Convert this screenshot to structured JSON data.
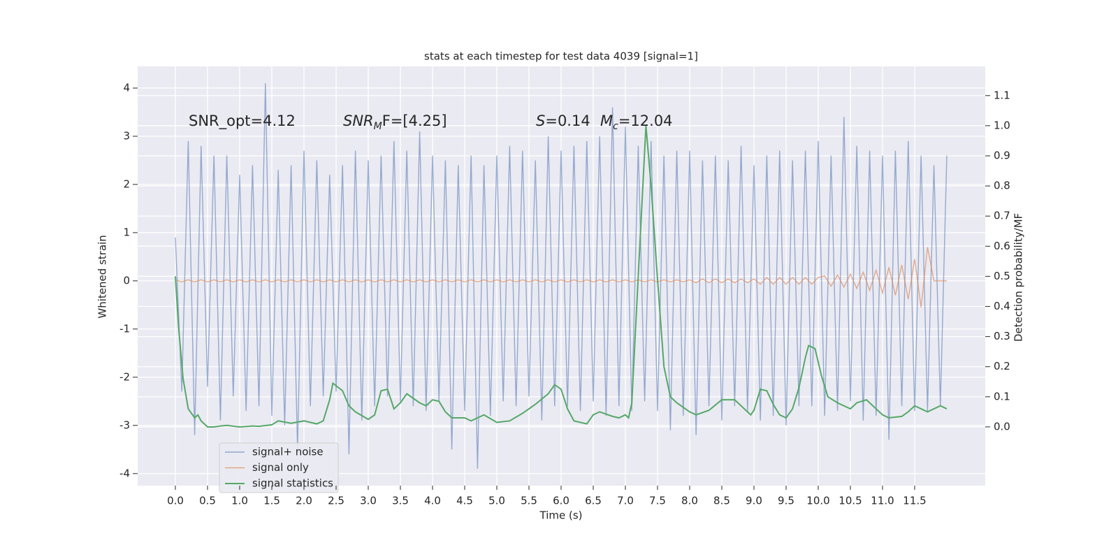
{
  "chart_data": {
    "type": "line",
    "title": "stats at each timestep for test data 4039 [signal=1]",
    "xlabel": "Time (s)",
    "ylabel": "Whitened strain",
    "y2label": "Detection probability/MF",
    "annotations": [
      "SNR_opt=4.12",
      [
        "SNR",
        "M",
        "F=[4.25]"
      ],
      [
        "S",
        "=0.14"
      ],
      [
        "M",
        "c",
        "=12.04"
      ]
    ],
    "xlim": [
      -0.587,
      12.598
    ],
    "xticks": [
      {
        "value": 0,
        "label": "0.0"
      },
      0.5,
      {
        "value": 1,
        "label": "1.0"
      },
      1.5,
      {
        "value": 2,
        "label": "2.0"
      },
      2.5,
      {
        "value": 3,
        "label": "3.0"
      },
      3.5,
      {
        "value": 4,
        "label": "4.0"
      },
      4.5,
      {
        "value": 5,
        "label": "5.0"
      },
      5.5,
      {
        "value": 6,
        "label": "6.0"
      },
      6.5,
      {
        "value": 7,
        "label": "7.0"
      },
      7.5,
      {
        "value": 8,
        "label": "8.0"
      },
      8.5,
      {
        "value": 9,
        "label": "9.0"
      },
      9.5,
      {
        "value": 10,
        "label": "10.0"
      },
      10.5,
      {
        "value": 11,
        "label": "11.0"
      },
      11.5
    ],
    "ylim": [
      -4.25,
      4.45
    ],
    "yticks": [
      -4,
      -3,
      -2,
      -1,
      0,
      1,
      2,
      3,
      4
    ],
    "y2lim": [
      -0.195,
      1.197
    ],
    "y2ticks": [
      {
        "value": 0,
        "label": "0.0"
      },
      0.1,
      0.2,
      0.3,
      0.4,
      0.5,
      0.6,
      0.7,
      0.8,
      0.9,
      {
        "value": 1,
        "label": "1.0"
      },
      1.1
    ],
    "grid": true,
    "legend": "lower left",
    "series": [
      {
        "name": "signal+ noise",
        "color": "#4c72b0",
        "x": [
          0,
          0.1,
          0.2,
          0.3,
          0.4,
          0.5,
          0.6,
          0.7,
          0.8,
          0.9,
          1,
          1.1,
          1.2,
          1.3,
          1.4,
          1.5,
          1.6,
          1.7,
          1.8,
          1.9,
          2,
          2.1,
          2.2,
          2.3,
          2.4,
          2.5,
          2.6,
          2.7,
          2.8,
          2.9,
          3,
          3.1,
          3.2,
          3.3,
          3.4,
          3.5,
          3.6,
          3.7,
          3.8,
          3.9,
          4,
          4.1,
          4.2,
          4.3,
          4.4,
          4.5,
          4.6,
          4.7,
          4.8,
          4.9,
          5,
          5.1,
          5.2,
          5.3,
          5.4,
          5.5,
          5.6,
          5.7,
          5.8,
          5.9,
          6,
          6.1,
          6.2,
          6.3,
          6.4,
          6.5,
          6.6,
          6.7,
          6.8,
          6.9,
          7,
          7.1,
          7.2,
          7.3,
          7.4,
          7.5,
          7.6,
          7.7,
          7.8,
          7.9,
          8,
          8.1,
          8.2,
          8.3,
          8.4,
          8.5,
          8.6,
          8.7,
          8.8,
          8.9,
          9,
          9.1,
          9.2,
          9.3,
          9.4,
          9.5,
          9.6,
          9.7,
          9.8,
          9.9,
          10,
          10.1,
          10.2,
          10.3,
          10.4,
          10.5,
          10.6,
          10.7,
          10.8,
          10.9,
          11,
          11.1,
          11.2,
          11.3,
          11.4,
          11.5,
          11.6,
          11.7,
          11.8,
          11.9,
          12
        ],
        "values": [
          0.9,
          -2.3,
          2.9,
          -3.2,
          2.8,
          -2.2,
          2.6,
          -2.9,
          2.6,
          -2.4,
          2.2,
          -2.7,
          2.4,
          -2.6,
          4.1,
          -2.8,
          2.3,
          -3.0,
          2.4,
          -3.5,
          2.7,
          -2.6,
          2.5,
          -2.4,
          2.2,
          -2.3,
          2.4,
          -3.6,
          2.7,
          -2.9,
          2.5,
          -2.6,
          2.6,
          -2.4,
          2.9,
          -2.5,
          2.7,
          -2.6,
          3.1,
          -2.7,
          2.6,
          -2.5,
          2.5,
          -3.5,
          2.4,
          -2.7,
          2.6,
          -3.9,
          2.4,
          -2.8,
          2.6,
          -2.5,
          2.8,
          -2.6,
          2.7,
          -2.4,
          2.5,
          -2.9,
          3.0,
          -2.6,
          2.7,
          -2.6,
          2.8,
          -2.7,
          2.9,
          -2.5,
          3.0,
          -2.8,
          3.6,
          -2.6,
          3.2,
          -2.7,
          2.8,
          -2.5,
          2.9,
          -2.7,
          2.6,
          -3.1,
          2.7,
          -2.8,
          2.7,
          -3.2,
          2.5,
          -2.6,
          2.6,
          -2.9,
          2.5,
          -2.6,
          2.8,
          -2.7,
          2.4,
          -2.9,
          2.6,
          -2.8,
          2.7,
          -3.0,
          2.5,
          -2.6,
          2.7,
          -2.6,
          2.9,
          -2.8,
          2.6,
          -2.7,
          3.4,
          -2.5,
          2.8,
          -2.9,
          2.7,
          -2.8,
          2.6,
          -3.3,
          2.7,
          -2.6,
          2.9,
          -2.7,
          2.6,
          -2.7,
          2.4,
          -2.6,
          2.6
        ]
      },
      {
        "name": "signal only",
        "color": "#dd8452",
        "x": [
          0,
          0.1,
          0.2,
          0.3,
          0.4,
          0.5,
          0.6,
          0.7,
          0.8,
          0.9,
          1,
          1.1,
          1.2,
          1.3,
          1.4,
          1.5,
          1.6,
          1.7,
          1.8,
          1.9,
          2,
          2.1,
          2.2,
          2.3,
          2.4,
          2.5,
          2.6,
          2.7,
          2.8,
          2.9,
          3,
          3.1,
          3.2,
          3.3,
          3.4,
          3.5,
          3.6,
          3.7,
          3.8,
          3.9,
          4,
          4.1,
          4.2,
          4.3,
          4.4,
          4.5,
          4.6,
          4.7,
          4.8,
          4.9,
          5,
          5.1,
          5.2,
          5.3,
          5.4,
          5.5,
          5.6,
          5.7,
          5.8,
          5.9,
          6,
          6.1,
          6.2,
          6.3,
          6.4,
          6.5,
          6.6,
          6.7,
          6.8,
          6.9,
          7,
          7.1,
          7.2,
          7.3,
          7.4,
          7.5,
          7.6,
          7.7,
          7.8,
          7.9,
          8,
          8.1,
          8.2,
          8.3,
          8.4,
          8.5,
          8.6,
          8.7,
          8.8,
          8.9,
          9,
          9.1,
          9.2,
          9.3,
          9.4,
          9.5,
          9.6,
          9.7,
          9.8,
          9.9,
          10,
          10.1,
          10.2,
          10.3,
          10.4,
          10.5,
          10.6,
          10.7,
          10.8,
          10.9,
          11,
          11.1,
          11.2,
          11.3,
          11.4,
          11.5,
          11.6,
          11.7,
          11.8,
          11.9,
          12
        ],
        "values": [
          0.02,
          -0.02,
          0.02,
          -0.02,
          0.02,
          -0.02,
          0.02,
          -0.02,
          0.02,
          -0.02,
          0.02,
          -0.02,
          0.02,
          -0.02,
          0.02,
          -0.02,
          0.02,
          -0.02,
          0.02,
          -0.02,
          0.02,
          -0.02,
          0.02,
          -0.02,
          0.02,
          -0.02,
          0.02,
          -0.02,
          0.02,
          -0.02,
          0.02,
          -0.02,
          0.02,
          -0.02,
          0.02,
          -0.02,
          0.02,
          -0.02,
          0.02,
          -0.02,
          0.02,
          -0.02,
          0.02,
          -0.02,
          0.02,
          -0.02,
          0.02,
          -0.02,
          0.02,
          -0.02,
          0.02,
          -0.02,
          0.02,
          -0.02,
          0.02,
          -0.02,
          0.02,
          -0.02,
          0.02,
          -0.02,
          0.02,
          -0.02,
          0.02,
          -0.02,
          0.02,
          -0.02,
          0.02,
          -0.02,
          0.02,
          -0.02,
          0.02,
          -0.02,
          0.02,
          -0.02,
          0.02,
          -0.02,
          0.02,
          -0.02,
          0.02,
          -0.02,
          0.02,
          -0.04,
          0.04,
          -0.04,
          0.04,
          -0.04,
          0.04,
          -0.04,
          0.04,
          -0.04,
          0.04,
          -0.07,
          0.07,
          -0.07,
          0.07,
          -0.07,
          0.07,
          -0.07,
          0.07,
          -0.07,
          0.07,
          0.1,
          -0.11,
          0.12,
          -0.13,
          0.14,
          -0.16,
          0.18,
          -0.2,
          0.22,
          -0.25,
          0.28,
          -0.3,
          0.33,
          -0.38,
          0.45,
          -0.55,
          0.7,
          0,
          0,
          0
        ]
      },
      {
        "name": "signal statistics",
        "color": "#55a868",
        "axis": "y2",
        "x": [
          0,
          0.05,
          0.12,
          0.2,
          0.3,
          0.35,
          0.4,
          0.5,
          0.6,
          0.7,
          0.8,
          1.0,
          1.2,
          1.3,
          1.5,
          1.6,
          1.8,
          2.0,
          2.2,
          2.3,
          2.4,
          2.45,
          2.6,
          2.7,
          2.8,
          3.0,
          3.1,
          3.2,
          3.3,
          3.4,
          3.5,
          3.6,
          3.7,
          3.8,
          3.9,
          4.0,
          4.1,
          4.2,
          4.3,
          4.5,
          4.6,
          4.8,
          5.0,
          5.2,
          5.4,
          5.6,
          5.8,
          5.9,
          6.0,
          6.1,
          6.2,
          6.4,
          6.5,
          6.6,
          6.8,
          6.9,
          7.0,
          7.05,
          7.1,
          7.2,
          7.32,
          7.4,
          7.5,
          7.6,
          7.7,
          7.8,
          8.0,
          8.1,
          8.3,
          8.5,
          8.7,
          8.9,
          8.95,
          9.0,
          9.1,
          9.2,
          9.3,
          9.4,
          9.5,
          9.6,
          9.7,
          9.8,
          9.85,
          9.95,
          10.05,
          10.15,
          10.3,
          10.5,
          10.6,
          10.75,
          10.9,
          11.0,
          11.1,
          11.3,
          11.4,
          11.5,
          11.6,
          11.7,
          11.8,
          11.9,
          12.0
        ],
        "values": [
          0.5,
          0.33,
          0.16,
          0.06,
          0.03,
          0.04,
          0.02,
          0.0,
          0.0,
          0.003,
          0.005,
          0.0,
          0.003,
          0.002,
          0.007,
          0.02,
          0.012,
          0.02,
          0.01,
          0.02,
          0.09,
          0.145,
          0.12,
          0.07,
          0.05,
          0.025,
          0.04,
          0.12,
          0.125,
          0.06,
          0.08,
          0.11,
          0.095,
          0.08,
          0.07,
          0.09,
          0.085,
          0.05,
          0.03,
          0.03,
          0.02,
          0.04,
          0.015,
          0.02,
          0.045,
          0.075,
          0.11,
          0.14,
          0.125,
          0.06,
          0.02,
          0.01,
          0.04,
          0.05,
          0.035,
          0.03,
          0.04,
          0.03,
          0.08,
          0.5,
          1.0,
          0.8,
          0.49,
          0.2,
          0.1,
          0.08,
          0.05,
          0.04,
          0.055,
          0.09,
          0.09,
          0.05,
          0.04,
          0.055,
          0.125,
          0.12,
          0.075,
          0.04,
          0.03,
          0.06,
          0.13,
          0.23,
          0.27,
          0.26,
          0.17,
          0.1,
          0.08,
          0.06,
          0.08,
          0.09,
          0.06,
          0.04,
          0.03,
          0.035,
          0.05,
          0.07,
          0.06,
          0.05,
          0.06,
          0.07,
          0.06
        ]
      }
    ]
  }
}
